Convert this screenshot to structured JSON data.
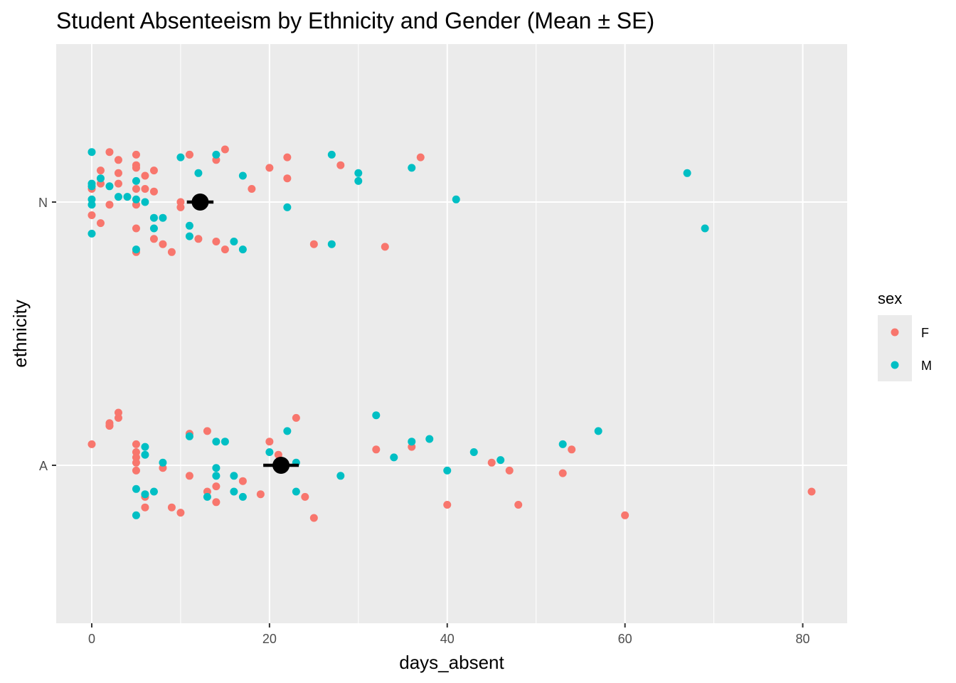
{
  "chart_data": {
    "type": "scatter",
    "title": "Student Absenteeism by Ethnicity and Gender (Mean ± SE)",
    "xlabel": "days_absent",
    "ylabel": "ethnicity",
    "xlim": [
      -4,
      85
    ],
    "x_ticks": [
      0,
      20,
      40,
      60,
      80
    ],
    "categories": [
      "A",
      "N"
    ],
    "grid": true,
    "jitter": "vertical offsets within each category are random jitter",
    "legend": {
      "title": "sex",
      "position": "right",
      "entries": [
        {
          "label": "F",
          "color": "#F8766D"
        },
        {
          "label": "M",
          "color": "#00BFC4"
        }
      ]
    },
    "series": [
      {
        "name": "F",
        "color": "#F8766D",
        "points": [
          {
            "x": 0,
            "y": "N",
            "j": 0.05
          },
          {
            "x": 0,
            "y": "N",
            "j": -0.05
          },
          {
            "x": 1,
            "y": "N",
            "j": 0.12
          },
          {
            "x": 1,
            "y": "N",
            "j": 0.07
          },
          {
            "x": 1,
            "y": "N",
            "j": -0.08
          },
          {
            "x": 2,
            "y": "N",
            "j": 0.19
          },
          {
            "x": 2,
            "y": "N",
            "j": -0.01
          },
          {
            "x": 3,
            "y": "N",
            "j": 0.16
          },
          {
            "x": 3,
            "y": "N",
            "j": 0.11
          },
          {
            "x": 3,
            "y": "N",
            "j": 0.07
          },
          {
            "x": 5,
            "y": "N",
            "j": 0.18
          },
          {
            "x": 5,
            "y": "N",
            "j": 0.13
          },
          {
            "x": 5,
            "y": "N",
            "j": 0.05
          },
          {
            "x": 5,
            "y": "N",
            "j": -0.01
          },
          {
            "x": 5,
            "y": "N",
            "j": -0.1
          },
          {
            "x": 5,
            "y": "N",
            "j": -0.19
          },
          {
            "x": 5,
            "y": "N",
            "j": 0.14
          },
          {
            "x": 6,
            "y": "N",
            "j": 0.1
          },
          {
            "x": 6,
            "y": "N",
            "j": 0.05
          },
          {
            "x": 7,
            "y": "N",
            "j": 0.12
          },
          {
            "x": 7,
            "y": "N",
            "j": 0.04
          },
          {
            "x": 7,
            "y": "N",
            "j": -0.14
          },
          {
            "x": 8,
            "y": "N",
            "j": -0.16
          },
          {
            "x": 9,
            "y": "N",
            "j": -0.19
          },
          {
            "x": 10,
            "y": "N",
            "j": 0.0
          },
          {
            "x": 10,
            "y": "N",
            "j": -0.02
          },
          {
            "x": 11,
            "y": "N",
            "j": 0.18
          },
          {
            "x": 11,
            "y": "N",
            "j": 0.18
          },
          {
            "x": 12,
            "y": "N",
            "j": -0.14
          },
          {
            "x": 14,
            "y": "N",
            "j": 0.16
          },
          {
            "x": 14,
            "y": "N",
            "j": -0.15
          },
          {
            "x": 15,
            "y": "N",
            "j": 0.2
          },
          {
            "x": 15,
            "y": "N",
            "j": -0.18
          },
          {
            "x": 18,
            "y": "N",
            "j": 0.05
          },
          {
            "x": 20,
            "y": "N",
            "j": 0.13
          },
          {
            "x": 22,
            "y": "N",
            "j": 0.17
          },
          {
            "x": 22,
            "y": "N",
            "j": 0.09
          },
          {
            "x": 25,
            "y": "N",
            "j": -0.16
          },
          {
            "x": 28,
            "y": "N",
            "j": 0.14
          },
          {
            "x": 33,
            "y": "N",
            "j": -0.17
          },
          {
            "x": 37,
            "y": "N",
            "j": 0.17
          },
          {
            "x": 0,
            "y": "A",
            "j": 0.08
          },
          {
            "x": 2,
            "y": "A",
            "j": 0.16
          },
          {
            "x": 2,
            "y": "A",
            "j": 0.15
          },
          {
            "x": 2,
            "y": "A",
            "j": 0.15
          },
          {
            "x": 3,
            "y": "A",
            "j": 0.2
          },
          {
            "x": 3,
            "y": "A",
            "j": 0.18
          },
          {
            "x": 5,
            "y": "A",
            "j": 0.08
          },
          {
            "x": 5,
            "y": "A",
            "j": 0.05
          },
          {
            "x": 5,
            "y": "A",
            "j": 0.03
          },
          {
            "x": 5,
            "y": "A",
            "j": 0.01
          },
          {
            "x": 5,
            "y": "A",
            "j": -0.02
          },
          {
            "x": 6,
            "y": "A",
            "j": -0.12
          },
          {
            "x": 6,
            "y": "A",
            "j": -0.16
          },
          {
            "x": 8,
            "y": "A",
            "j": -0.01
          },
          {
            "x": 9,
            "y": "A",
            "j": -0.16
          },
          {
            "x": 10,
            "y": "A",
            "j": -0.18
          },
          {
            "x": 11,
            "y": "A",
            "j": 0.12
          },
          {
            "x": 11,
            "y": "A",
            "j": -0.04
          },
          {
            "x": 13,
            "y": "A",
            "j": 0.13
          },
          {
            "x": 13,
            "y": "A",
            "j": -0.1
          },
          {
            "x": 14,
            "y": "A",
            "j": -0.08
          },
          {
            "x": 14,
            "y": "A",
            "j": -0.14
          },
          {
            "x": 17,
            "y": "A",
            "j": -0.06
          },
          {
            "x": 19,
            "y": "A",
            "j": -0.11
          },
          {
            "x": 20,
            "y": "A",
            "j": 0.09
          },
          {
            "x": 21,
            "y": "A",
            "j": 0.04
          },
          {
            "x": 23,
            "y": "A",
            "j": 0.18
          },
          {
            "x": 24,
            "y": "A",
            "j": -0.12
          },
          {
            "x": 25,
            "y": "A",
            "j": -0.2
          },
          {
            "x": 32,
            "y": "A",
            "j": 0.06
          },
          {
            "x": 36,
            "y": "A",
            "j": 0.07
          },
          {
            "x": 40,
            "y": "A",
            "j": -0.15
          },
          {
            "x": 45,
            "y": "A",
            "j": 0.01
          },
          {
            "x": 47,
            "y": "A",
            "j": -0.02
          },
          {
            "x": 48,
            "y": "A",
            "j": -0.15
          },
          {
            "x": 53,
            "y": "A",
            "j": -0.03
          },
          {
            "x": 54,
            "y": "A",
            "j": 0.06
          },
          {
            "x": 60,
            "y": "A",
            "j": -0.19
          },
          {
            "x": 81,
            "y": "A",
            "j": -0.1
          }
        ]
      },
      {
        "name": "M",
        "color": "#00BFC4",
        "points": [
          {
            "x": 0,
            "y": "N",
            "j": 0.19
          },
          {
            "x": 0,
            "y": "N",
            "j": 0.07
          },
          {
            "x": 0,
            "y": "N",
            "j": 0.06
          },
          {
            "x": 0,
            "y": "N",
            "j": 0.01
          },
          {
            "x": 0,
            "y": "N",
            "j": -0.01
          },
          {
            "x": 0,
            "y": "N",
            "j": -0.12
          },
          {
            "x": 1,
            "y": "N",
            "j": 0.09
          },
          {
            "x": 2,
            "y": "N",
            "j": 0.06
          },
          {
            "x": 3,
            "y": "N",
            "j": 0.02
          },
          {
            "x": 4,
            "y": "N",
            "j": 0.02
          },
          {
            "x": 5,
            "y": "N",
            "j": 0.08
          },
          {
            "x": 5,
            "y": "N",
            "j": 0.01
          },
          {
            "x": 5,
            "y": "N",
            "j": -0.18
          },
          {
            "x": 6,
            "y": "N",
            "j": 0.0
          },
          {
            "x": 7,
            "y": "N",
            "j": -0.06
          },
          {
            "x": 7,
            "y": "N",
            "j": -0.1
          },
          {
            "x": 8,
            "y": "N",
            "j": -0.06
          },
          {
            "x": 10,
            "y": "N",
            "j": 0.17
          },
          {
            "x": 11,
            "y": "N",
            "j": -0.09
          },
          {
            "x": 11,
            "y": "N",
            "j": -0.13
          },
          {
            "x": 12,
            "y": "N",
            "j": 0.11
          },
          {
            "x": 14,
            "y": "N",
            "j": 0.18
          },
          {
            "x": 16,
            "y": "N",
            "j": -0.15
          },
          {
            "x": 17,
            "y": "N",
            "j": 0.1
          },
          {
            "x": 17,
            "y": "N",
            "j": -0.18
          },
          {
            "x": 22,
            "y": "N",
            "j": -0.02
          },
          {
            "x": 27,
            "y": "N",
            "j": 0.18
          },
          {
            "x": 27,
            "y": "N",
            "j": -0.16
          },
          {
            "x": 30,
            "y": "N",
            "j": 0.11
          },
          {
            "x": 30,
            "y": "N",
            "j": 0.08
          },
          {
            "x": 36,
            "y": "N",
            "j": 0.13
          },
          {
            "x": 41,
            "y": "N",
            "j": 0.01
          },
          {
            "x": 67,
            "y": "N",
            "j": 0.11
          },
          {
            "x": 69,
            "y": "N",
            "j": -0.1
          },
          {
            "x": 5,
            "y": "A",
            "j": -0.09
          },
          {
            "x": 5,
            "y": "A",
            "j": -0.19
          },
          {
            "x": 6,
            "y": "A",
            "j": 0.07
          },
          {
            "x": 6,
            "y": "A",
            "j": 0.04
          },
          {
            "x": 6,
            "y": "A",
            "j": -0.11
          },
          {
            "x": 7,
            "y": "A",
            "j": -0.1
          },
          {
            "x": 8,
            "y": "A",
            "j": 0.01
          },
          {
            "x": 11,
            "y": "A",
            "j": 0.11
          },
          {
            "x": 13,
            "y": "A",
            "j": -0.12
          },
          {
            "x": 14,
            "y": "A",
            "j": 0.09
          },
          {
            "x": 14,
            "y": "A",
            "j": -0.01
          },
          {
            "x": 14,
            "y": "A",
            "j": -0.04
          },
          {
            "x": 15,
            "y": "A",
            "j": 0.09
          },
          {
            "x": 16,
            "y": "A",
            "j": -0.04
          },
          {
            "x": 16,
            "y": "A",
            "j": -0.1
          },
          {
            "x": 17,
            "y": "A",
            "j": -0.12
          },
          {
            "x": 20,
            "y": "A",
            "j": 0.05
          },
          {
            "x": 22,
            "y": "A",
            "j": 0.13
          },
          {
            "x": 23,
            "y": "A",
            "j": 0.01
          },
          {
            "x": 23,
            "y": "A",
            "j": -0.1
          },
          {
            "x": 28,
            "y": "A",
            "j": -0.04
          },
          {
            "x": 32,
            "y": "A",
            "j": 0.19
          },
          {
            "x": 34,
            "y": "A",
            "j": 0.03
          },
          {
            "x": 36,
            "y": "A",
            "j": 0.09
          },
          {
            "x": 38,
            "y": "A",
            "j": 0.1
          },
          {
            "x": 40,
            "y": "A",
            "j": -0.02
          },
          {
            "x": 43,
            "y": "A",
            "j": 0.05
          },
          {
            "x": 46,
            "y": "A",
            "j": 0.02
          },
          {
            "x": 53,
            "y": "A",
            "j": 0.08
          },
          {
            "x": 57,
            "y": "A",
            "j": 0.13
          }
        ]
      }
    ],
    "summary": [
      {
        "category": "N",
        "mean": 12.2,
        "se_low": 10.7,
        "se_high": 13.7
      },
      {
        "category": "A",
        "mean": 21.3,
        "se_low": 19.3,
        "se_high": 23.3
      }
    ]
  }
}
